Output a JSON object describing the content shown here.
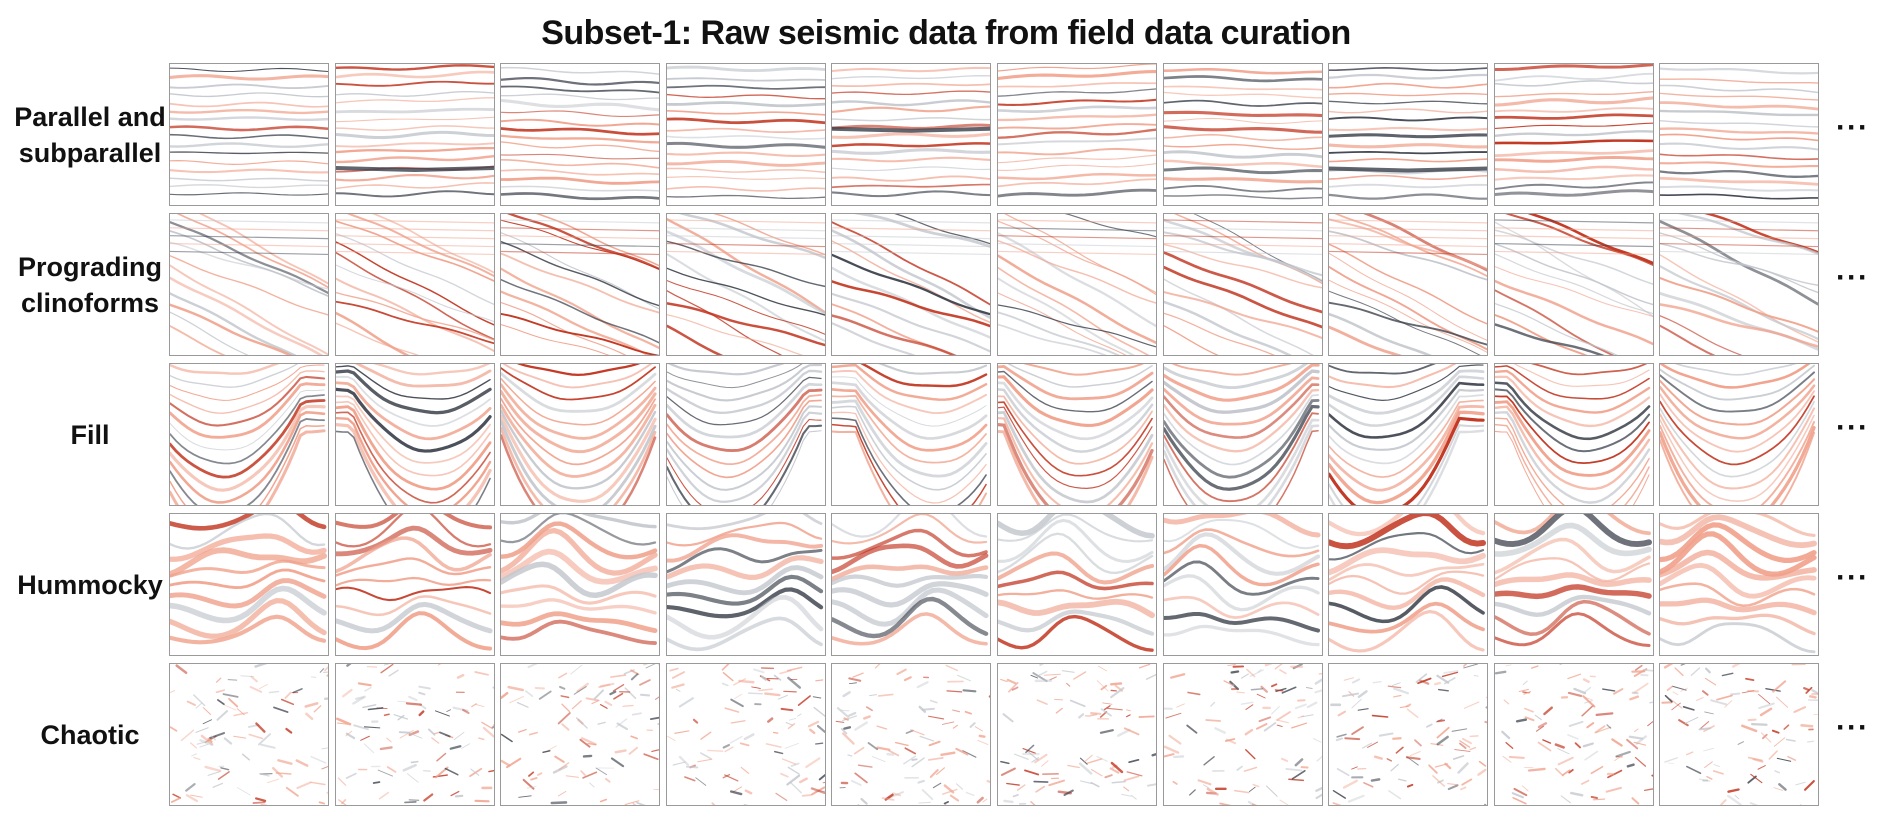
{
  "title": "Subset-1: Raw seismic data from field data curation",
  "more_indicator": "···",
  "rows": [
    {
      "key": "parallel",
      "label_lines": [
        "Parallel and",
        "subparallel"
      ],
      "pattern": "parallel"
    },
    {
      "key": "prograding",
      "label_lines": [
        "Prograding",
        "clinoforms"
      ],
      "pattern": "prograding"
    },
    {
      "key": "fill",
      "label_lines": [
        "Fill"
      ],
      "pattern": "fill"
    },
    {
      "key": "hummocky",
      "label_lines": [
        "Hummocky"
      ],
      "pattern": "hummocky"
    },
    {
      "key": "chaotic",
      "label_lines": [
        "Chaotic"
      ],
      "pattern": "chaotic"
    }
  ],
  "tiles_per_row": 10,
  "colors": {
    "red_strong": "#c0301a",
    "red_light": "#f0a08a",
    "dark": "#3a3f4a",
    "grey_light": "#c2c6cc"
  }
}
